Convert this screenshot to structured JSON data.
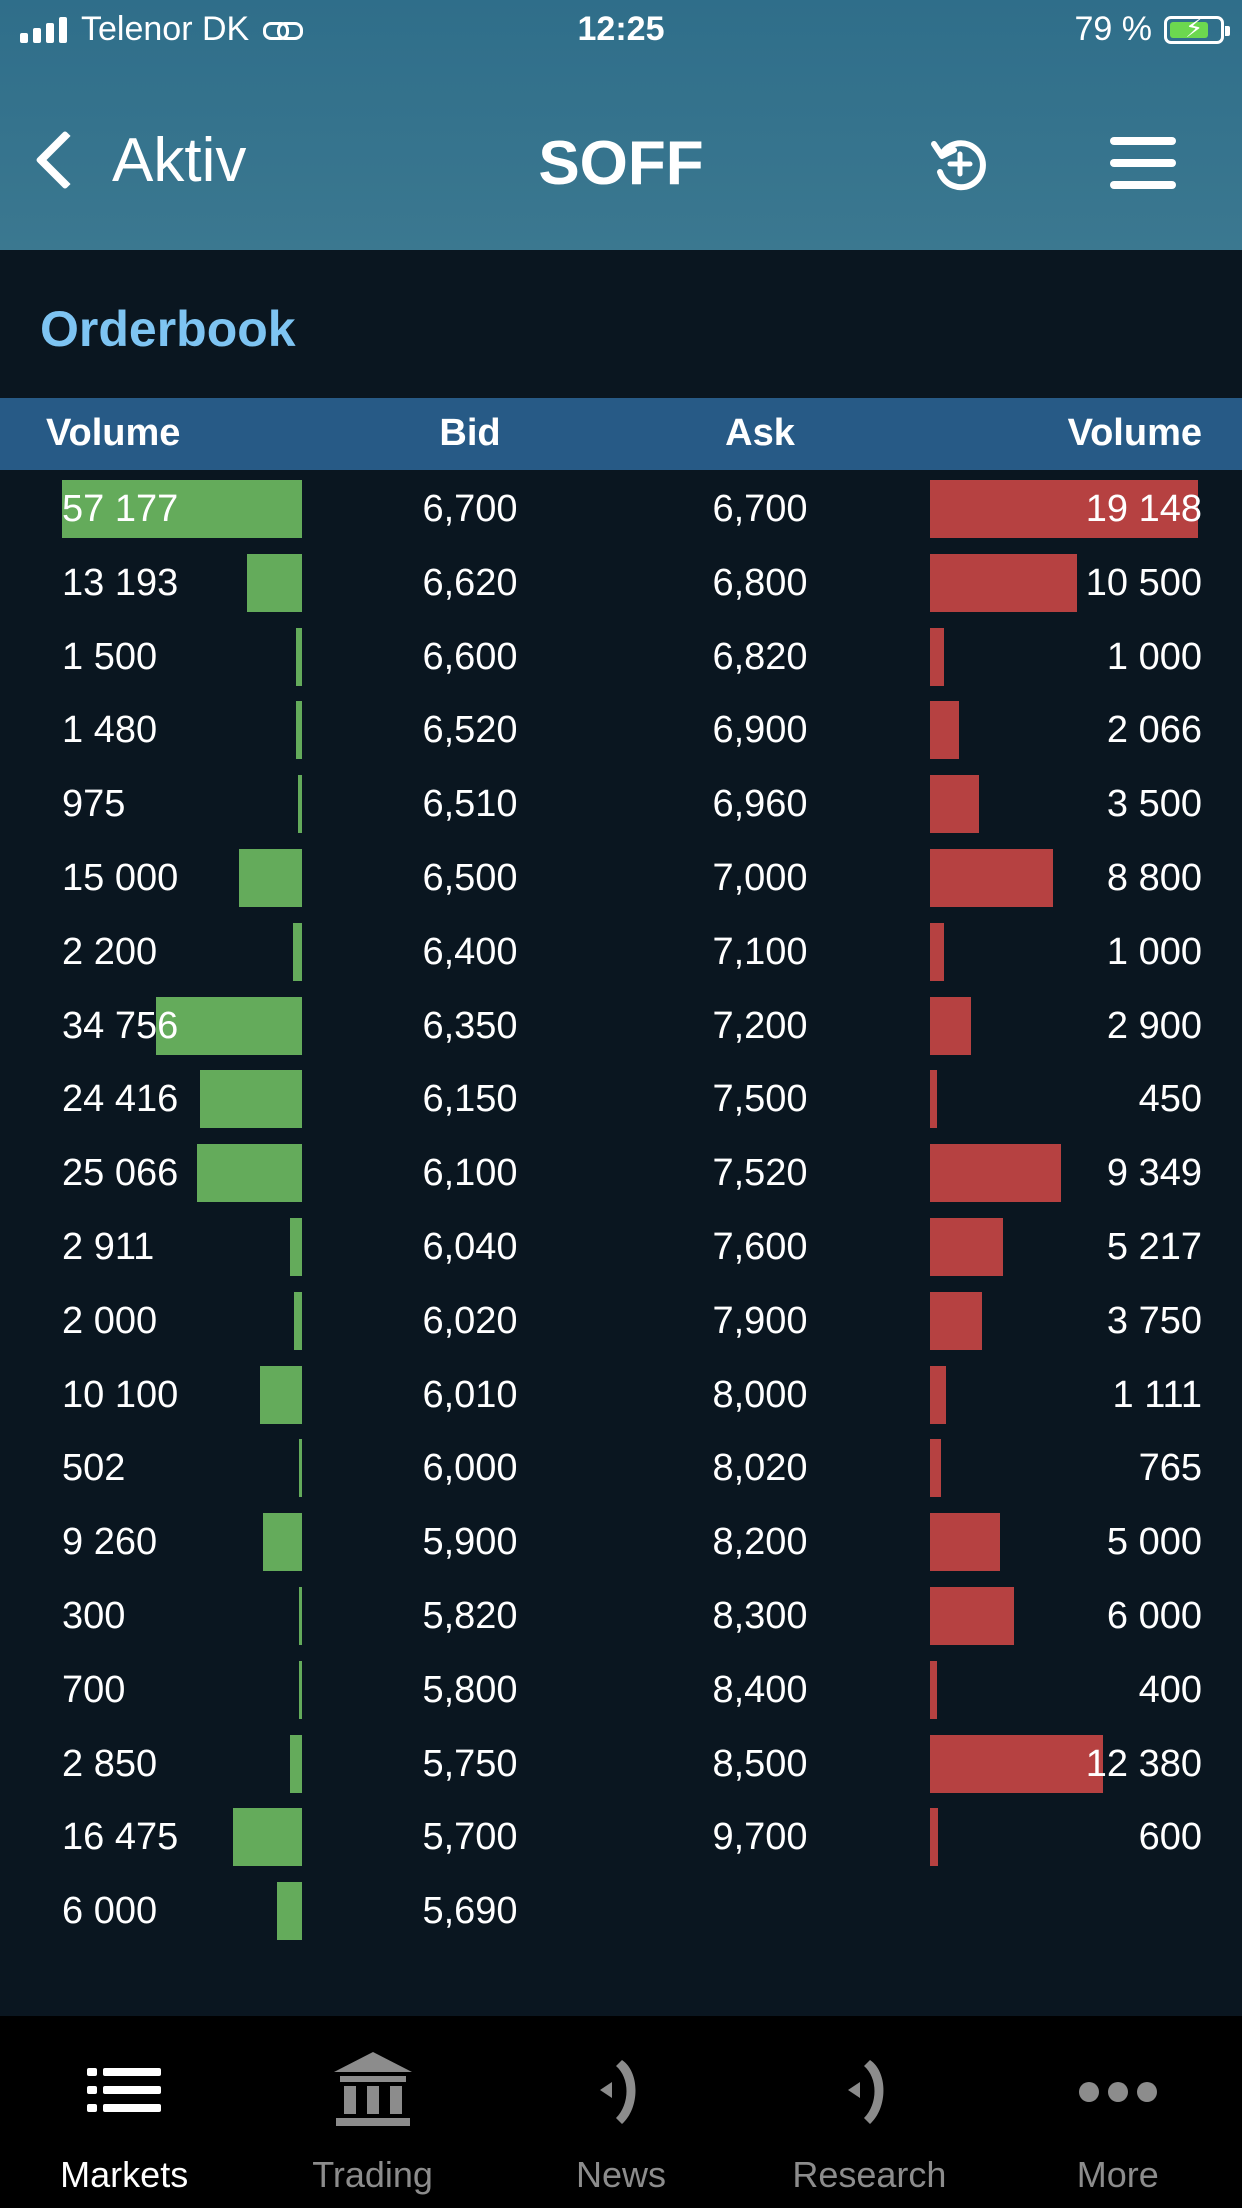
{
  "status_bar": {
    "carrier": "Telenor DK",
    "time": "12:25",
    "battery_percent": "79 %",
    "battery_level": 0.79
  },
  "nav": {
    "back_label": "Aktiv",
    "title": "SOFF"
  },
  "orderbook": {
    "title": "Orderbook",
    "columns": {
      "bid_volume": "Volume",
      "bid": "Bid",
      "ask": "Ask",
      "ask_volume": "Volume"
    },
    "bids": [
      {
        "volume": "57 177",
        "price": "6,700"
      },
      {
        "volume": "13 193",
        "price": "6,620"
      },
      {
        "volume": "1 500",
        "price": "6,600"
      },
      {
        "volume": "1 480",
        "price": "6,520"
      },
      {
        "volume": "975",
        "price": "6,510"
      },
      {
        "volume": "15 000",
        "price": "6,500"
      },
      {
        "volume": "2 200",
        "price": "6,400"
      },
      {
        "volume": "34 756",
        "price": "6,350"
      },
      {
        "volume": "24 416",
        "price": "6,150"
      },
      {
        "volume": "25 066",
        "price": "6,100"
      },
      {
        "volume": "2 911",
        "price": "6,040"
      },
      {
        "volume": "2 000",
        "price": "6,020"
      },
      {
        "volume": "10 100",
        "price": "6,010"
      },
      {
        "volume": "502",
        "price": "6,000"
      },
      {
        "volume": "9 260",
        "price": "5,900"
      },
      {
        "volume": "300",
        "price": "5,820"
      },
      {
        "volume": "700",
        "price": "5,800"
      },
      {
        "volume": "2 850",
        "price": "5,750"
      },
      {
        "volume": "16 475",
        "price": "5,700"
      },
      {
        "volume": "6 000",
        "price": "5,690"
      }
    ],
    "asks": [
      {
        "price": "6,700",
        "volume": "19 148"
      },
      {
        "price": "6,800",
        "volume": "10 500"
      },
      {
        "price": "6,820",
        "volume": "1 000"
      },
      {
        "price": "6,900",
        "volume": "2 066"
      },
      {
        "price": "6,960",
        "volume": "3 500"
      },
      {
        "price": "7,000",
        "volume": "8 800"
      },
      {
        "price": "7,100",
        "volume": "1 000"
      },
      {
        "price": "7,200",
        "volume": "2 900"
      },
      {
        "price": "7,500",
        "volume": "450"
      },
      {
        "price": "7,520",
        "volume": "9 349"
      },
      {
        "price": "7,600",
        "volume": "5 217"
      },
      {
        "price": "7,900",
        "volume": "3 750"
      },
      {
        "price": "8,000",
        "volume": "1 111"
      },
      {
        "price": "8,020",
        "volume": "765"
      },
      {
        "price": "8,200",
        "volume": "5 000"
      },
      {
        "price": "8,300",
        "volume": "6 000"
      },
      {
        "price": "8,400",
        "volume": "400"
      },
      {
        "price": "8,500",
        "volume": "12 380"
      },
      {
        "price": "9,700",
        "volume": "600"
      }
    ],
    "colors": {
      "bid_bar": "#64ab5b",
      "ask_bar": "#b64141",
      "header_bg": "#275a86",
      "title": "#7ec4f2"
    }
  },
  "tabbar": {
    "items": [
      {
        "label": "Markets",
        "icon": "list-icon",
        "active": true
      },
      {
        "label": "Trading",
        "icon": "bank-icon",
        "active": false
      },
      {
        "label": "News",
        "icon": "broadcast-icon",
        "active": false
      },
      {
        "label": "Research",
        "icon": "broadcast-icon",
        "active": false
      },
      {
        "label": "More",
        "icon": "more-icon",
        "active": false
      }
    ]
  }
}
